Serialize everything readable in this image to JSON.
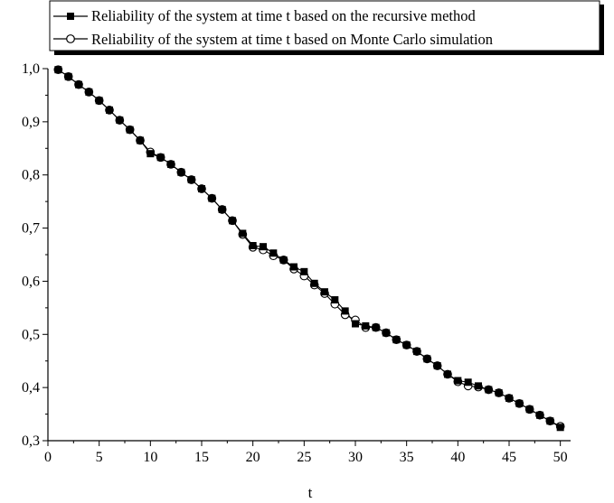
{
  "chart_data": {
    "type": "line",
    "title": "",
    "xlabel": "t",
    "ylabel": "",
    "xlim": [
      0,
      51
    ],
    "ylim": [
      0.3,
      1.0
    ],
    "x_ticks": [
      0,
      5,
      10,
      15,
      20,
      25,
      30,
      35,
      40,
      45,
      50
    ],
    "x_tick_labels": [
      "0",
      "5",
      "10",
      "15",
      "20",
      "25",
      "30",
      "35",
      "40",
      "45",
      "50"
    ],
    "y_ticks": [
      0.3,
      0.4,
      0.5,
      0.6,
      0.7,
      0.8,
      0.9,
      1.0
    ],
    "y_tick_labels": [
      "0,3",
      "0,4",
      "0,5",
      "0,6",
      "0,7",
      "0,8",
      "0,9",
      "1,0"
    ],
    "grid": false,
    "legend_position": "top",
    "x": [
      1,
      2,
      3,
      4,
      5,
      6,
      7,
      8,
      9,
      10,
      11,
      12,
      13,
      14,
      15,
      16,
      17,
      18,
      19,
      20,
      21,
      22,
      23,
      24,
      25,
      26,
      27,
      28,
      29,
      30,
      31,
      32,
      33,
      34,
      35,
      36,
      37,
      38,
      39,
      40,
      41,
      42,
      43,
      44,
      45,
      46,
      47,
      48,
      49,
      50
    ],
    "series": [
      {
        "name": "Reliability of the system at time t based on the recursive method",
        "marker": "filled-square",
        "values": [
          0.998,
          0.985,
          0.97,
          0.956,
          0.94,
          0.922,
          0.903,
          0.885,
          0.865,
          0.84,
          0.833,
          0.82,
          0.805,
          0.791,
          0.774,
          0.756,
          0.735,
          0.714,
          0.69,
          0.667,
          0.665,
          0.653,
          0.64,
          0.627,
          0.618,
          0.596,
          0.58,
          0.565,
          0.544,
          0.52,
          0.516,
          0.513,
          0.503,
          0.49,
          0.48,
          0.468,
          0.454,
          0.441,
          0.425,
          0.413,
          0.41,
          0.403,
          0.396,
          0.39,
          0.38,
          0.37,
          0.359,
          0.348,
          0.337,
          0.325
        ]
      },
      {
        "name": "Reliability of the system at time t based on Monte Carlo simulation",
        "marker": "open-circle",
        "values": [
          0.998,
          0.985,
          0.97,
          0.956,
          0.94,
          0.922,
          0.903,
          0.885,
          0.865,
          0.843,
          0.833,
          0.82,
          0.805,
          0.791,
          0.774,
          0.756,
          0.735,
          0.714,
          0.688,
          0.664,
          0.659,
          0.648,
          0.64,
          0.623,
          0.61,
          0.593,
          0.577,
          0.557,
          0.537,
          0.527,
          0.513,
          0.513,
          0.503,
          0.49,
          0.48,
          0.468,
          0.454,
          0.441,
          0.425,
          0.411,
          0.403,
          0.401,
          0.396,
          0.39,
          0.38,
          0.37,
          0.359,
          0.348,
          0.337,
          0.327
        ]
      }
    ]
  }
}
